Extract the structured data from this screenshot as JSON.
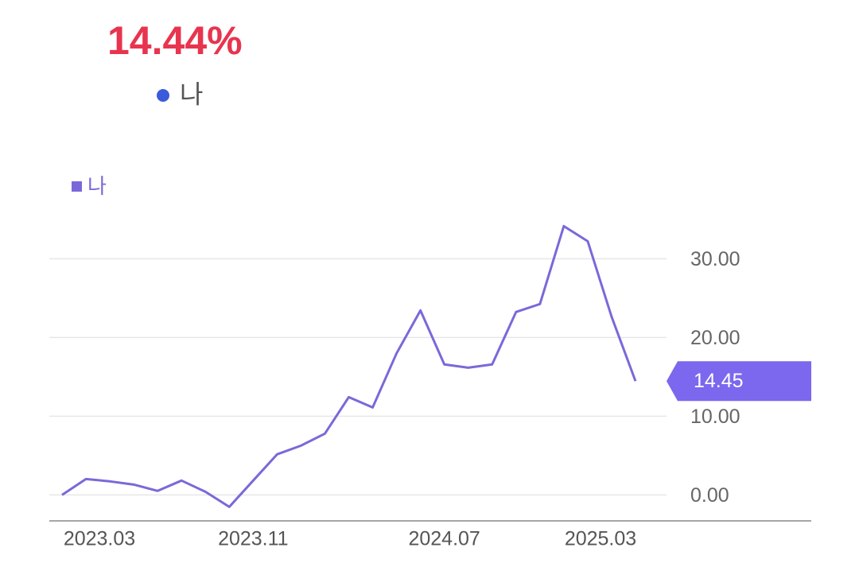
{
  "header": {
    "value": "14.44%",
    "legend": "나"
  },
  "chart_data": {
    "type": "line",
    "categories": [
      "2023.03",
      null,
      null,
      null,
      null,
      null,
      null,
      null,
      "2023.11",
      null,
      null,
      null,
      null,
      null,
      null,
      null,
      "2024.07",
      null,
      null,
      null,
      null,
      null,
      null,
      null,
      "2025.03"
    ],
    "series": [
      {
        "name": "나",
        "color": "#7b68d9",
        "values": [
          0,
          2.02,
          1.72,
          1.31,
          0.51,
          1.82,
          0.4,
          -1.52,
          1.82,
          5.15,
          6.26,
          7.78,
          12.42,
          11.11,
          17.98,
          23.43,
          16.57,
          16.16,
          16.57,
          23.23,
          24.24,
          34.14,
          32.22,
          22.63,
          14.45
        ]
      }
    ],
    "ylim": [
      -3.3,
      36
    ],
    "yticks": [
      {
        "value": 0,
        "label": "0.00"
      },
      {
        "value": 10,
        "label": "10.00"
      },
      {
        "value": 20,
        "label": "20.00"
      },
      {
        "value": 30,
        "label": "30.00"
      }
    ],
    "grid": true,
    "y_axis_side": "right",
    "last_value_badge_color": "#7b68ee"
  }
}
